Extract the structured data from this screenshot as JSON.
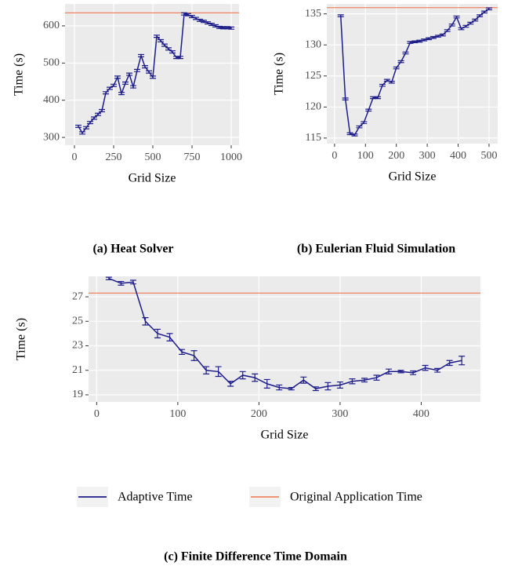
{
  "figure": {
    "legend": [
      {
        "name": "Adaptive Time",
        "color": "#1c1c8a"
      },
      {
        "name": "Original Application Time",
        "color": "#f08462"
      }
    ]
  },
  "chart_data": [
    {
      "type": "line",
      "caption": "(a) Heat Solver",
      "xlabel": "Grid Size",
      "ylabel": "Time (s)",
      "x": [
        25,
        50,
        75,
        100,
        125,
        150,
        175,
        200,
        225,
        250,
        275,
        300,
        325,
        350,
        375,
        400,
        425,
        450,
        475,
        500,
        525,
        550,
        575,
        600,
        625,
        650,
        675,
        700,
        725,
        750,
        775,
        800,
        825,
        850,
        875,
        900,
        925,
        950,
        975,
        1000
      ],
      "values": [
        330,
        312,
        326,
        340,
        352,
        362,
        372,
        420,
        432,
        440,
        462,
        418,
        446,
        470,
        436,
        480,
        520,
        490,
        476,
        462,
        572,
        560,
        548,
        538,
        530,
        515,
        515,
        632,
        630,
        625,
        620,
        615,
        612,
        608,
        604,
        600,
        596,
        595,
        595,
        594
      ],
      "errors": [
        3,
        3,
        3,
        3,
        3,
        3,
        3,
        3,
        3,
        3,
        3,
        3,
        3,
        3,
        3,
        3,
        3,
        3,
        3,
        3,
        3,
        3,
        3,
        3,
        3,
        3,
        3,
        3,
        3,
        3,
        3,
        3,
        3,
        3,
        3,
        3,
        3,
        3,
        3,
        3
      ],
      "reference": 635,
      "xlim": [
        -60,
        1050
      ],
      "ylim": [
        279,
        659
      ],
      "xticks": [
        0,
        250,
        500,
        750,
        1000
      ],
      "yticks": [
        300,
        400,
        500,
        600
      ],
      "grid": true
    },
    {
      "type": "line",
      "caption": "(b) Eulerian Fluid Simulation",
      "xlabel": "Grid Size",
      "ylabel": "Time (s)",
      "x": [
        20,
        35,
        50,
        65,
        80,
        95,
        110,
        125,
        140,
        155,
        170,
        185,
        200,
        215,
        230,
        245,
        260,
        275,
        290,
        305,
        320,
        335,
        350,
        365,
        380,
        395,
        410,
        425,
        440,
        455,
        470,
        485,
        500
      ],
      "values": [
        134.7,
        121.3,
        115.7,
        115.5,
        116.8,
        117.5,
        119.5,
        121.5,
        121.5,
        123.5,
        124.3,
        124,
        126.3,
        127.3,
        128.7,
        130.4,
        130.5,
        130.6,
        130.8,
        131,
        131.2,
        131.4,
        131.6,
        132.3,
        133.2,
        134.5,
        132.6,
        133,
        133.5,
        134,
        134.7,
        135.3,
        135.8
      ],
      "errors": [
        0.15,
        0.15,
        0.15,
        0.15,
        0.15,
        0.15,
        0.15,
        0.15,
        0.15,
        0.15,
        0.15,
        0.15,
        0.15,
        0.15,
        0.15,
        0.15,
        0.15,
        0.15,
        0.15,
        0.15,
        0.15,
        0.15,
        0.15,
        0.15,
        0.15,
        0.15,
        0.15,
        0.15,
        0.15,
        0.15,
        0.15,
        0.15,
        0.15
      ],
      "reference": 136,
      "xlim": [
        -25,
        528
      ],
      "ylim": [
        114.1,
        136.6
      ],
      "xticks": [
        0,
        100,
        200,
        300,
        400,
        500
      ],
      "yticks": [
        115,
        120,
        125,
        130,
        135
      ],
      "grid": true
    },
    {
      "type": "line",
      "caption": "(c) Finite Difference Time Domain",
      "xlabel": "Grid Size",
      "ylabel": "Time (s)",
      "x": [
        15,
        30,
        45,
        60,
        75,
        90,
        105,
        120,
        135,
        150,
        165,
        180,
        195,
        210,
        225,
        240,
        255,
        270,
        285,
        300,
        315,
        330,
        345,
        360,
        375,
        390,
        405,
        420,
        435,
        450
      ],
      "values": [
        28.5,
        28.1,
        28.2,
        25,
        24,
        23.7,
        22.5,
        22.2,
        21,
        20.9,
        19.9,
        20.6,
        20.4,
        19.9,
        19.6,
        19.5,
        20.2,
        19.5,
        19.7,
        19.8,
        20.1,
        20.2,
        20.4,
        20.9,
        20.9,
        20.8,
        21.2,
        21,
        21.6,
        21.8
      ],
      "errors": [
        0.1,
        0.15,
        0.15,
        0.3,
        0.35,
        0.3,
        0.2,
        0.4,
        0.3,
        0.4,
        0.2,
        0.3,
        0.3,
        0.35,
        0.2,
        0.1,
        0.25,
        0.15,
        0.3,
        0.25,
        0.2,
        0.15,
        0.2,
        0.2,
        0.1,
        0.15,
        0.2,
        0.15,
        0.2,
        0.35
      ],
      "reference": 27.3,
      "xlim": [
        -10,
        473
      ],
      "ylim": [
        18.42,
        28.67
      ],
      "xticks": [
        0,
        100,
        200,
        300,
        400
      ],
      "yticks": [
        19,
        21,
        23,
        25,
        27
      ],
      "grid": true
    }
  ]
}
